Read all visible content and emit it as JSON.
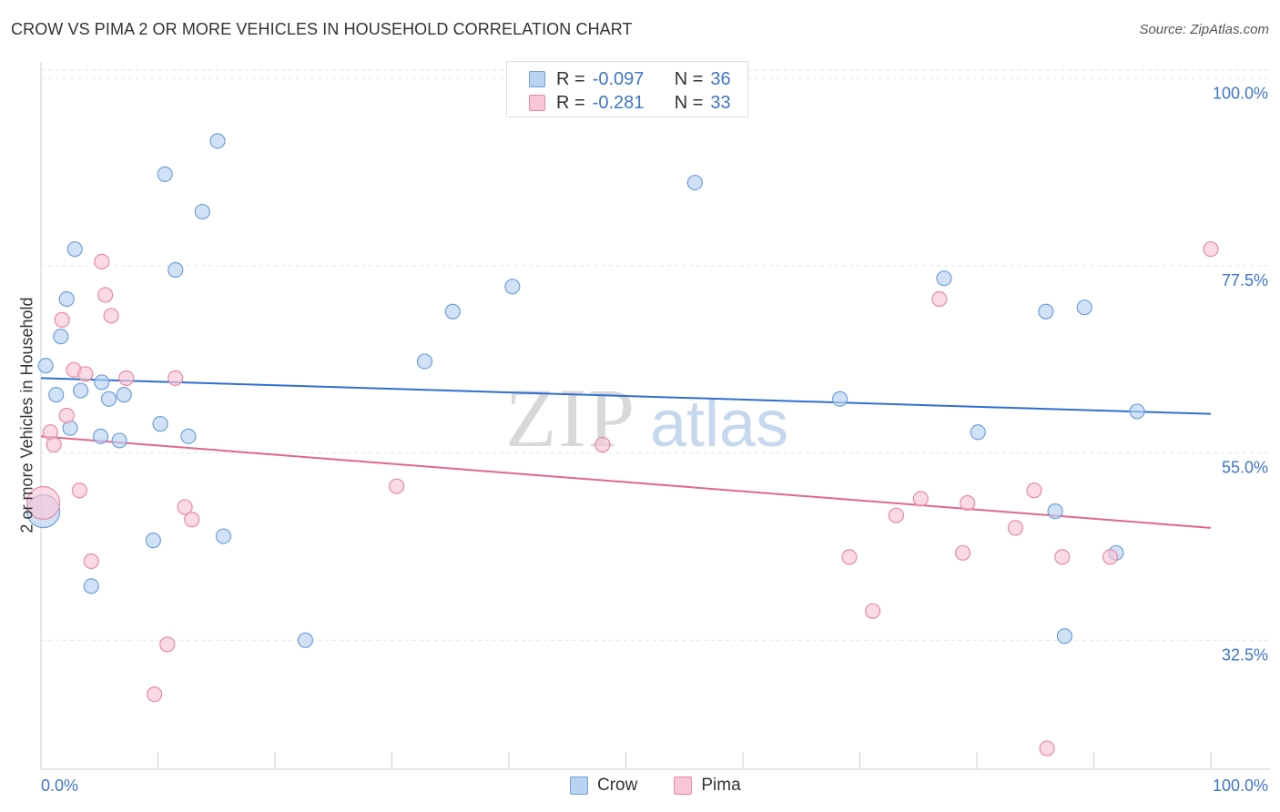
{
  "title": "CROW VS PIMA 2 OR MORE VEHICLES IN HOUSEHOLD CORRELATION CHART",
  "source": "Source: ZipAtlas.com",
  "watermark": {
    "zip": "ZIP",
    "atlas": "atlas"
  },
  "legend_top": [
    {
      "r_label": "R =",
      "r_value": "-0.097",
      "n_label": "N =",
      "n_value": "36"
    },
    {
      "r_label": "R =",
      "r_value": "-0.281",
      "n_label": "N =",
      "n_value": "33"
    }
  ],
  "legend_bottom": [
    "Crow",
    "Pima"
  ],
  "colors": {
    "crow_fill": "#b9d3f3",
    "crow_stroke": "#6f9fd8",
    "crow_line": "#2f6fd0",
    "pima_fill": "#f8c6d5",
    "pima_stroke": "#e68aa6",
    "pima_line": "#e0668f",
    "tick_label": "#3f74c9",
    "grid": "#e3e3e3"
  },
  "chart_data": {
    "type": "scatter",
    "title": "CROW VS PIMA 2 OR MORE VEHICLES IN HOUSEHOLD CORRELATION CHART",
    "xlabel": "",
    "ylabel": "2 or more Vehicles in Household",
    "xlim": [
      0,
      100
    ],
    "ylim": [
      17,
      102
    ],
    "x_tick_labels": [
      "0.0%",
      "100.0%"
    ],
    "y_ticks": [
      32.5,
      55.0,
      77.5,
      100.0
    ],
    "y_tick_labels": [
      "32.5%",
      "55.0%",
      "77.5%",
      "100.0%"
    ],
    "grid": true,
    "legend": "top-center",
    "series": [
      {
        "name": "Crow",
        "r": -0.097,
        "n": 36,
        "points": [
          [
            0.2,
            48.0
          ],
          [
            0.4,
            65.5
          ],
          [
            1.3,
            62.0
          ],
          [
            1.7,
            69.0
          ],
          [
            2.2,
            73.5
          ],
          [
            2.5,
            58.0
          ],
          [
            2.9,
            79.5
          ],
          [
            3.4,
            62.5
          ],
          [
            4.3,
            39.0
          ],
          [
            5.1,
            57.0
          ],
          [
            5.2,
            63.5
          ],
          [
            5.8,
            61.5
          ],
          [
            6.7,
            56.5
          ],
          [
            7.1,
            62.0
          ],
          [
            9.6,
            44.5
          ],
          [
            10.2,
            58.5
          ],
          [
            10.6,
            88.5
          ],
          [
            11.5,
            77.0
          ],
          [
            12.6,
            57.0
          ],
          [
            13.8,
            84.0
          ],
          [
            15.1,
            92.5
          ],
          [
            15.6,
            45.0
          ],
          [
            22.6,
            32.5
          ],
          [
            32.8,
            66.0
          ],
          [
            35.2,
            72.0
          ],
          [
            40.3,
            75.0
          ],
          [
            55.9,
            87.5
          ],
          [
            68.3,
            61.5
          ],
          [
            77.2,
            76.0
          ],
          [
            80.1,
            57.5
          ],
          [
            85.9,
            72.0
          ],
          [
            86.7,
            48.0
          ],
          [
            87.5,
            33.0
          ],
          [
            89.2,
            72.5
          ],
          [
            91.9,
            43.0
          ],
          [
            93.7,
            60.0
          ]
        ],
        "trend": [
          [
            0,
            64.0
          ],
          [
            100,
            59.7
          ]
        ]
      },
      {
        "name": "Pima",
        "r": -0.281,
        "n": 33,
        "points": [
          [
            0.2,
            49.0
          ],
          [
            0.8,
            57.5
          ],
          [
            1.1,
            56.0
          ],
          [
            1.8,
            71.0
          ],
          [
            2.2,
            59.5
          ],
          [
            2.8,
            65.0
          ],
          [
            3.3,
            50.5
          ],
          [
            3.8,
            64.5
          ],
          [
            4.3,
            42.0
          ],
          [
            5.2,
            78.0
          ],
          [
            5.5,
            74.0
          ],
          [
            6.0,
            71.5
          ],
          [
            7.3,
            64.0
          ],
          [
            9.7,
            26.0
          ],
          [
            10.8,
            32.0
          ],
          [
            11.5,
            64.0
          ],
          [
            12.3,
            48.5
          ],
          [
            12.9,
            47.0
          ],
          [
            30.4,
            51.0
          ],
          [
            48.0,
            56.0
          ],
          [
            69.1,
            42.5
          ],
          [
            71.1,
            36.0
          ],
          [
            73.1,
            47.5
          ],
          [
            75.2,
            49.5
          ],
          [
            76.8,
            73.5
          ],
          [
            78.8,
            43.0
          ],
          [
            79.2,
            49.0
          ],
          [
            83.3,
            46.0
          ],
          [
            84.9,
            50.5
          ],
          [
            86.0,
            19.5
          ],
          [
            87.3,
            42.5
          ],
          [
            91.4,
            42.5
          ],
          [
            100.0,
            79.5
          ]
        ],
        "trend": [
          [
            0,
            57.0
          ],
          [
            100,
            46.0
          ]
        ]
      }
    ]
  }
}
